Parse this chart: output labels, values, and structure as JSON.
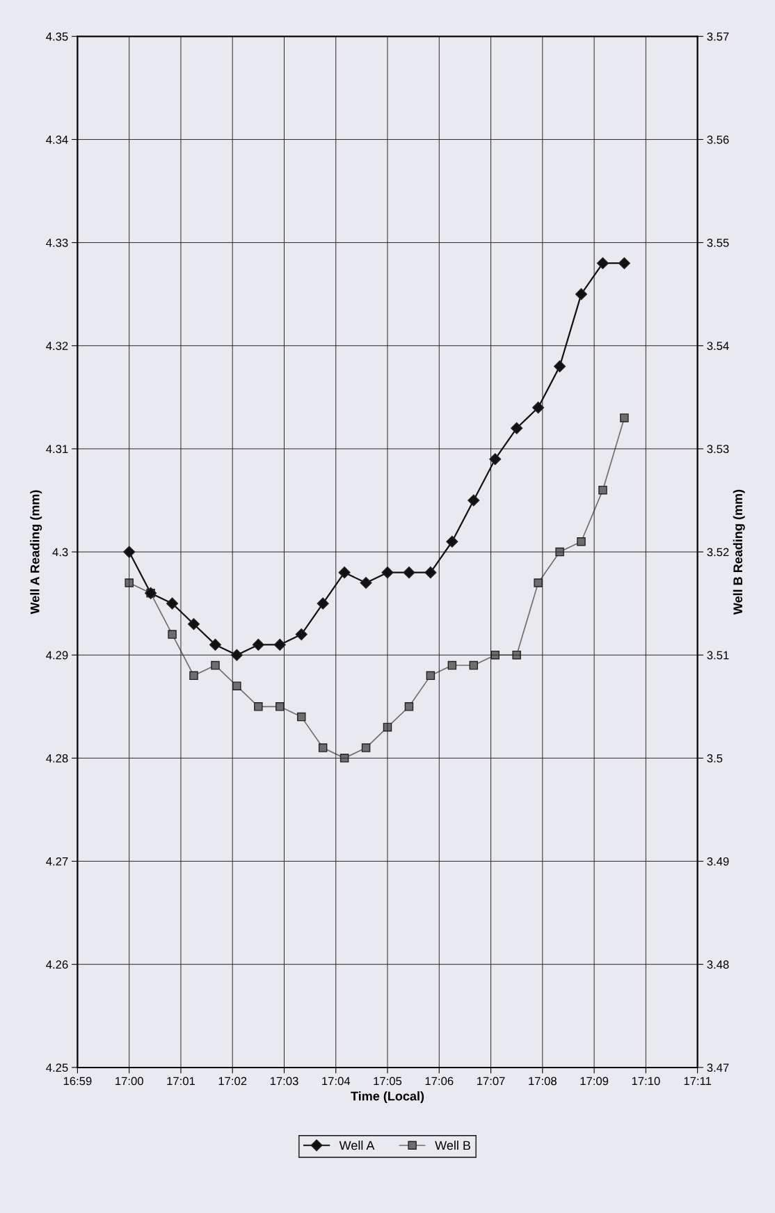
{
  "chart_data": {
    "type": "line",
    "xlabel": "Time (Local)",
    "ylabel": "Well A Reading (mm)",
    "y2label": "Well B Reading (mm)",
    "x": [
      17.0,
      17.00694,
      17.01389,
      17.02083,
      17.02778,
      17.03472,
      17.04167,
      17.04861,
      17.05556,
      17.0625,
      17.06944,
      17.07639,
      17.08333,
      17.09028,
      17.09722,
      17.10417,
      17.11111,
      17.11806,
      17.125,
      17.13194,
      17.13889,
      17.14583,
      17.15278,
      17.15972
    ],
    "series": [
      {
        "name": "Well A",
        "color": "#111111",
        "marker": "diamond",
        "values": [
          4.3,
          4.296,
          4.295,
          4.293,
          4.291,
          4.29,
          4.291,
          4.291,
          4.292,
          4.295,
          4.298,
          4.297,
          4.298,
          4.298,
          4.298,
          4.301,
          4.305,
          4.309,
          4.312,
          4.314,
          4.318,
          4.325,
          4.328,
          4.328
        ]
      },
      {
        "name": "Well B",
        "color": "#6e6e6e",
        "marker": "square",
        "axis": "y2",
        "values": [
          3.517,
          3.516,
          3.512,
          3.508,
          3.509,
          3.507,
          3.505,
          3.505,
          3.504,
          3.501,
          3.5,
          3.501,
          3.503,
          3.505,
          3.508,
          3.509,
          3.509,
          3.51,
          3.51,
          3.517,
          3.52,
          3.521,
          3.526,
          3.533
        ]
      }
    ],
    "xlim": [
      16.98333,
      17.18333
    ],
    "xticks": [
      {
        "value": 16.98333,
        "label": "16:59"
      },
      {
        "value": 17.0,
        "label": "17:00"
      },
      {
        "value": 17.01667,
        "label": "17:01"
      },
      {
        "value": 17.03333,
        "label": "17:02"
      },
      {
        "value": 17.05,
        "label": "17:03"
      },
      {
        "value": 17.06667,
        "label": "17:04"
      },
      {
        "value": 17.08333,
        "label": "17:05"
      },
      {
        "value": 17.1,
        "label": "17:06"
      },
      {
        "value": 17.11667,
        "label": "17:07"
      },
      {
        "value": 17.13333,
        "label": "17:08"
      },
      {
        "value": 17.15,
        "label": "17:09"
      },
      {
        "value": 17.16667,
        "label": "17:10"
      },
      {
        "value": 17.18333,
        "label": "17:11"
      }
    ],
    "ylim": [
      4.25,
      4.35
    ],
    "yticks": [
      4.25,
      4.26,
      4.27,
      4.28,
      4.29,
      4.3,
      4.31,
      4.32,
      4.33,
      4.34,
      4.35
    ],
    "y2lim": [
      3.47,
      3.57
    ],
    "y2ticks": [
      3.47,
      3.48,
      3.49,
      3.5,
      3.51,
      3.52,
      3.53,
      3.54,
      3.55,
      3.56,
      3.57
    ],
    "grid": true,
    "legend": "bottom",
    "line_style": "solid"
  }
}
